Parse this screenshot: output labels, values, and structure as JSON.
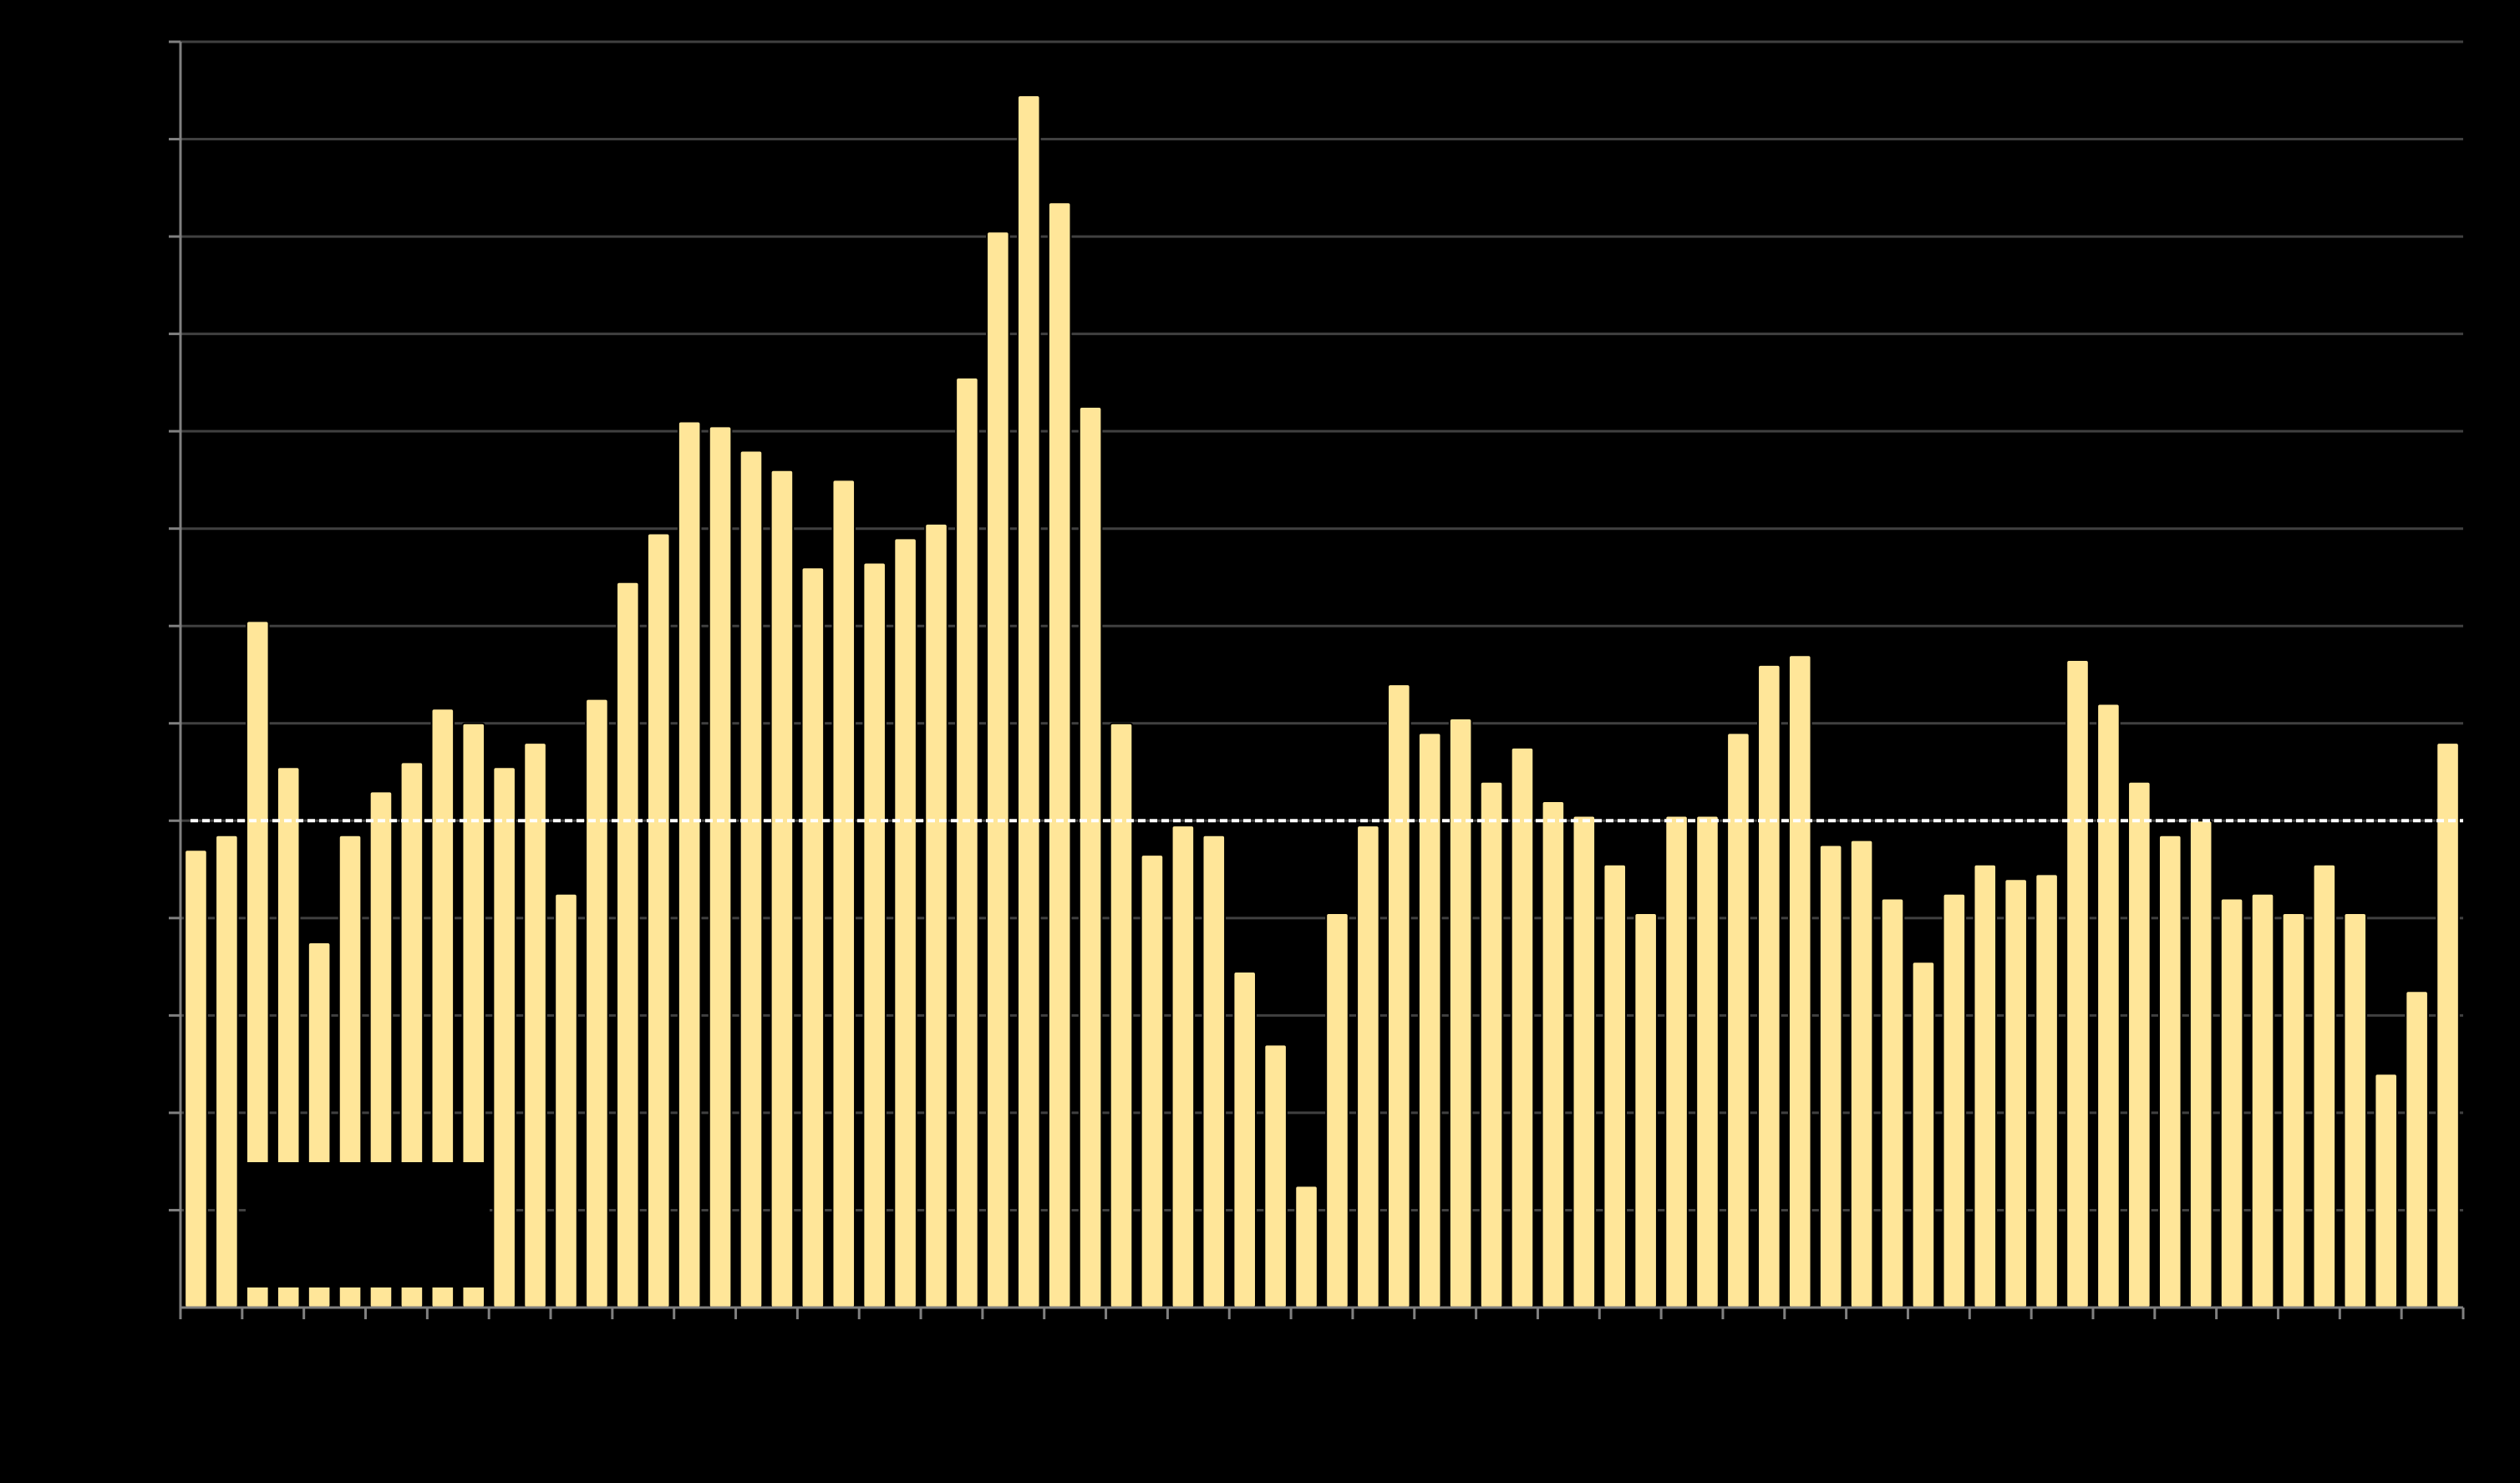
{
  "chart_data": {
    "type": "bar",
    "title": "",
    "xlabel": "",
    "ylabel": "",
    "ylim": [
      0,
      13
    ],
    "y_gridlines": [
      1,
      2,
      3,
      4,
      5,
      6,
      7,
      8,
      9,
      10,
      11,
      12,
      13
    ],
    "grid": "horizontal",
    "reference_line": {
      "value": 5.0,
      "style": "dashed",
      "color": "#ffffff"
    },
    "legend": {
      "placement": "bottom-left",
      "entries": []
    },
    "colors": {
      "background": "#000000",
      "bar": "#FFE699",
      "bar_outline": "#000000",
      "grid": "#404040",
      "axis": "#808080"
    },
    "values": [
      4.7,
      4.85,
      7.05,
      5.55,
      3.75,
      4.85,
      5.3,
      5.6,
      6.15,
      6.0,
      5.55,
      5.8,
      4.25,
      6.25,
      7.45,
      7.95,
      9.1,
      9.05,
      8.8,
      8.6,
      7.6,
      8.5,
      7.65,
      7.9,
      8.05,
      9.55,
      11.05,
      12.45,
      11.35,
      9.25,
      6.0,
      4.65,
      4.95,
      4.85,
      3.45,
      2.7,
      1.25,
      4.05,
      4.95,
      6.4,
      5.9,
      6.05,
      5.4,
      5.75,
      5.2,
      5.05,
      4.55,
      4.05,
      5.05,
      5.05,
      5.9,
      6.6,
      6.7,
      4.75,
      4.8,
      4.2,
      3.55,
      4.25,
      4.55,
      4.4,
      4.45,
      6.65,
      6.2,
      5.4,
      4.85,
      5.0,
      4.2,
      4.25,
      4.05,
      4.55,
      4.05,
      2.4,
      3.25,
      5.8
    ]
  }
}
